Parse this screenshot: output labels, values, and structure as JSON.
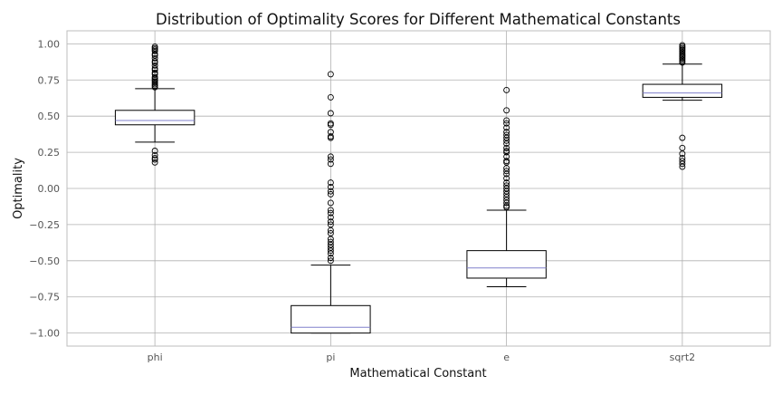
{
  "chart_data": {
    "type": "box",
    "title": "Distribution of Optimality Scores for Different Mathematical Constants",
    "xlabel": "Mathematical Constant",
    "ylabel": "Optimality",
    "ylim": [
      -1.09,
      1.09
    ],
    "yticks": [
      1.0,
      0.75,
      0.5,
      0.25,
      0.0,
      -0.25,
      -0.5,
      -0.75,
      -1.0
    ],
    "ytick_labels": [
      "1.00",
      "0.75",
      "0.50",
      "0.25",
      "0.00",
      "−0.25",
      "−0.50",
      "−0.75",
      "−1.00"
    ],
    "grid": true,
    "categories": [
      "phi",
      "pi",
      "e",
      "sqrt2"
    ],
    "boxes": [
      {
        "name": "phi",
        "whisker_low": 0.32,
        "q1": 0.44,
        "median": 0.47,
        "q3": 0.54,
        "whisker_high": 0.69,
        "outliers": [
          0.98,
          0.97,
          0.96,
          0.95,
          0.93,
          0.92,
          0.9,
          0.88,
          0.87,
          0.85,
          0.83,
          0.82,
          0.8,
          0.79,
          0.77,
          0.76,
          0.75,
          0.74,
          0.73,
          0.72,
          0.71,
          0.7,
          0.26,
          0.23,
          0.21,
          0.2,
          0.18
        ]
      },
      {
        "name": "pi",
        "whisker_low": -1.0,
        "q1": -1.0,
        "median": -0.96,
        "q3": -0.81,
        "whisker_high": -0.53,
        "outliers": [
          0.79,
          0.63,
          0.52,
          0.45,
          0.44,
          0.39,
          0.36,
          0.35,
          0.22,
          0.2,
          0.17,
          0.04,
          0.01,
          -0.02,
          -0.04,
          -0.1,
          -0.15,
          -0.17,
          -0.2,
          -0.23,
          -0.25,
          -0.29,
          -0.31,
          -0.35,
          -0.37,
          -0.39,
          -0.41,
          -0.43,
          -0.45,
          -0.48,
          -0.5
        ]
      },
      {
        "name": "e",
        "whisker_low": -0.68,
        "q1": -0.62,
        "median": -0.55,
        "q3": -0.43,
        "whisker_high": -0.15,
        "outliers": [
          0.68,
          0.54,
          0.47,
          0.45,
          0.42,
          0.39,
          0.37,
          0.35,
          0.33,
          0.31,
          0.28,
          0.26,
          0.25,
          0.22,
          0.19,
          0.18,
          0.14,
          0.12,
          0.1,
          0.07,
          0.04,
          0.02,
          0.0,
          -0.02,
          -0.04,
          -0.06,
          -0.08,
          -0.1,
          -0.12,
          -0.13
        ]
      },
      {
        "name": "sqrt2",
        "whisker_low": 0.61,
        "q1": 0.63,
        "median": 0.66,
        "q3": 0.72,
        "whisker_high": 0.86,
        "outliers": [
          0.99,
          0.98,
          0.97,
          0.96,
          0.95,
          0.94,
          0.93,
          0.92,
          0.91,
          0.9,
          0.89,
          0.88,
          0.87,
          0.35,
          0.28,
          0.24,
          0.21,
          0.19,
          0.17,
          0.15
        ]
      }
    ],
    "colors": {
      "box": "#000000",
      "median": "#8080cc",
      "grid": "#b0b0b0",
      "frame": "#bdbdbd",
      "flier": "#000000"
    }
  }
}
